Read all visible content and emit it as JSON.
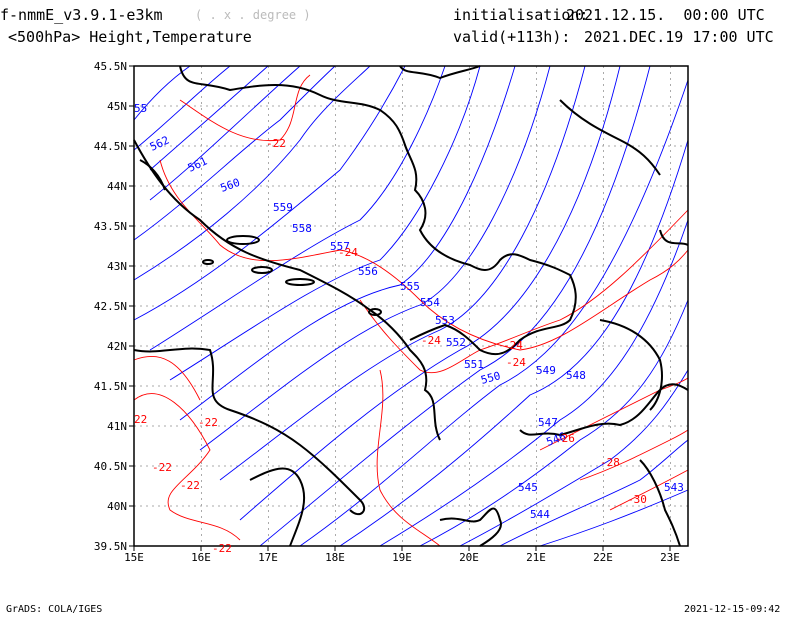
{
  "header": {
    "model": "f-nmmE_v3.9.1-e3km",
    "projection_note": "( . x . degree )",
    "field": "<500hPa> Height,Temperature",
    "init_label": "initialisation:",
    "init_value": "2021.12.15.  00:00 UTC",
    "valid_label": "valid(+113h):",
    "valid_value": "2021.DEC.19 17:00 UTC"
  },
  "footer": {
    "left": "GrADS: COLA/IGES",
    "right": "2021-12-15-09:42"
  },
  "map": {
    "lon_range": [
      15,
      23.3
    ],
    "lat_range": [
      39.5,
      45.5
    ],
    "lon_ticks": [
      "15E",
      "16E",
      "17E",
      "18E",
      "19E",
      "20E",
      "21E",
      "22E",
      "23E"
    ],
    "lat_ticks": [
      "39.5N",
      "40N",
      "40.5N",
      "41N",
      "41.5N",
      "42N",
      "42.5N",
      "43N",
      "43.5N",
      "44N",
      "44.5N",
      "45N",
      "45.5N"
    ],
    "height_color": "#0000ff",
    "temp_color": "#ff0000",
    "height_labels": [
      "562",
      "561",
      "560",
      "559",
      "558",
      "557",
      "556",
      "555",
      "554",
      "553",
      "552",
      "551",
      "550",
      "549",
      "548",
      "547",
      "546",
      "545",
      "544",
      "543",
      "55"
    ],
    "temp_labels": [
      "-22",
      "-22",
      "-22",
      "-22",
      "-22",
      "-24",
      "-24",
      "-24",
      "-24",
      "-26",
      "-28",
      "-30",
      "22"
    ]
  }
}
